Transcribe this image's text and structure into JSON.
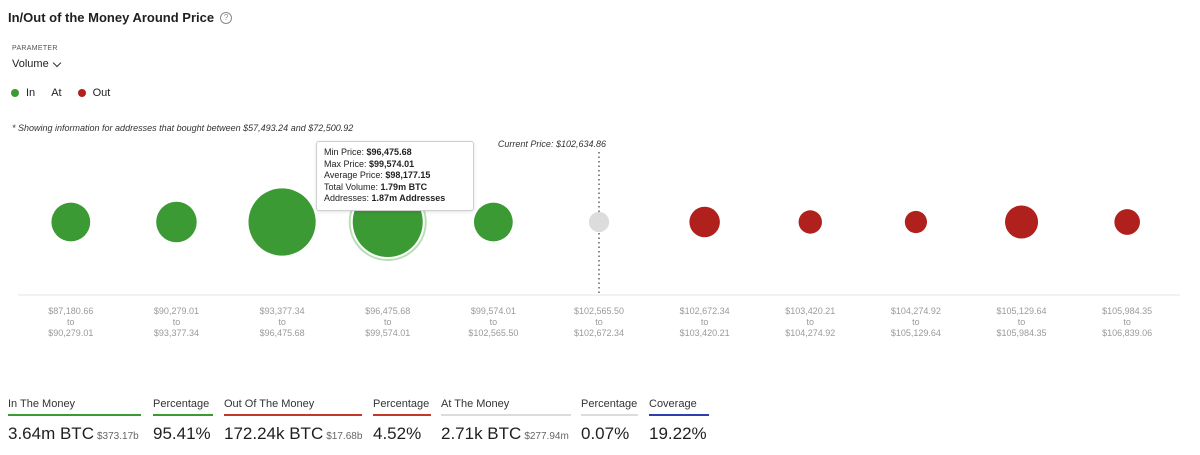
{
  "header": {
    "title": "In/Out of the Money Around Price",
    "help_icon": "question-circle-icon"
  },
  "parameter": {
    "label": "PARAMETER",
    "value": "Volume"
  },
  "legend": [
    {
      "label": "In",
      "color": "#3c9a35"
    },
    {
      "label": "At",
      "color": ""
    },
    {
      "label": "Out",
      "color": "#b0201c"
    }
  ],
  "note": "* Showing information for addresses that bought between $57,493.24 and $72,500.92",
  "tooltip": {
    "min_label": "Min Price:",
    "min_value": "$96,475.68",
    "max_label": "Max Price:",
    "max_value": "$99,574.01",
    "avg_label": "Average Price:",
    "avg_value": "$98,177.15",
    "vol_label": "Total Volume:",
    "vol_value": "1.79m BTC",
    "addr_label": "Addresses:",
    "addr_value": "1.87m Addresses"
  },
  "chart_data": {
    "type": "scatter",
    "current_price_label": "Current Price: $102,634.86",
    "current_price_index": 5,
    "colors": {
      "in": "#3c9a35",
      "at": "#dcdcdc",
      "out": "#b0201c"
    },
    "buckets": [
      {
        "from": "$87,180.66",
        "to": "$90,279.01",
        "status": "in",
        "volume": 0.55
      },
      {
        "from": "$90,279.01",
        "to": "$93,377.34",
        "status": "in",
        "volume": 0.6
      },
      {
        "from": "$93,377.34",
        "to": "$96,475.68",
        "status": "in",
        "volume": 1.65
      },
      {
        "from": "$96,475.68",
        "to": "$99,574.01",
        "status": "in",
        "volume": 1.79,
        "highlighted": true
      },
      {
        "from": "$99,574.01",
        "to": "$102,565.50",
        "status": "in",
        "volume": 0.55
      },
      {
        "from": "$102,565.50",
        "to": "$102,672.34",
        "status": "at",
        "volume": 0.15
      },
      {
        "from": "$102,672.34",
        "to": "$103,420.21",
        "status": "out",
        "volume": 0.34
      },
      {
        "from": "$103,420.21",
        "to": "$104,274.92",
        "status": "out",
        "volume": 0.2
      },
      {
        "from": "$104,274.92",
        "to": "$105,129.64",
        "status": "out",
        "volume": 0.18
      },
      {
        "from": "$105,129.64",
        "to": "$105,984.35",
        "status": "out",
        "volume": 0.4
      },
      {
        "from": "$105,984.35",
        "to": "$106,839.06",
        "status": "out",
        "volume": 0.24
      }
    ],
    "to_word": "to"
  },
  "stats": {
    "in": {
      "label": "In The Money",
      "value": "3.64m BTC",
      "sub": "$373.17b",
      "color": "#3c9a35"
    },
    "in_pct": {
      "label": "Percentage",
      "value": "95.41%",
      "color": "#3c9a35"
    },
    "out": {
      "label": "Out Of The Money",
      "value": "172.24k BTC",
      "sub": "$17.68b",
      "color": "#c0392b"
    },
    "out_pct": {
      "label": "Percentage",
      "value": "4.52%",
      "color": "#c0392b"
    },
    "at": {
      "label": "At The Money",
      "value": "2.71k BTC",
      "sub": "$277.94m",
      "color": "#dcdcdc"
    },
    "at_pct": {
      "label": "Percentage",
      "value": "0.07%",
      "color": "#dcdcdc"
    },
    "coverage": {
      "label": "Coverage",
      "value": "19.22%",
      "color": "#2b3fb0"
    }
  }
}
